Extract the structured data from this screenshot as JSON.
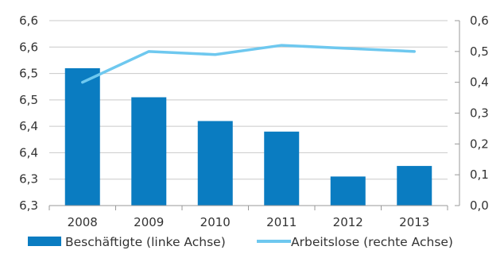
{
  "chart_data": {
    "type": "bar+line",
    "categories": [
      "2008",
      "2009",
      "2010",
      "2011",
      "2012",
      "2013"
    ],
    "series": [
      {
        "name": "Beschäftigte (linke Achse)",
        "type": "bar",
        "axis": "left",
        "values": [
          6.56,
          6.505,
          6.46,
          6.44,
          6.355,
          6.375
        ],
        "color": "#0a7cc1"
      },
      {
        "name": "Arbeitslose (rechte Achse)",
        "type": "line",
        "axis": "right",
        "values": [
          0.4,
          0.5,
          0.49,
          0.52,
          0.51,
          0.5
        ],
        "color": "#6ec8ef"
      }
    ],
    "left_axis": {
      "range": [
        6.3,
        6.6
      ],
      "tick_values": [
        6.3,
        6.35,
        6.4,
        6.45,
        6.5,
        6.55,
        6.6,
        6.65
      ],
      "tick_labels": [
        "6,3",
        "6,3",
        "6,4",
        "6,4",
        "6,5",
        "6,5",
        "6,6",
        "6,6"
      ]
    },
    "right_axis": {
      "range": [
        0.0,
        0.6
      ],
      "tick_values": [
        0.0,
        0.1,
        0.2,
        0.3,
        0.4,
        0.5,
        0.6
      ],
      "tick_labels": [
        "0,0",
        "0,1",
        "0,2",
        "0,3",
        "0,4",
        "0,5",
        "0,6"
      ]
    },
    "grid": "horizontal",
    "legend_position": "bottom"
  }
}
